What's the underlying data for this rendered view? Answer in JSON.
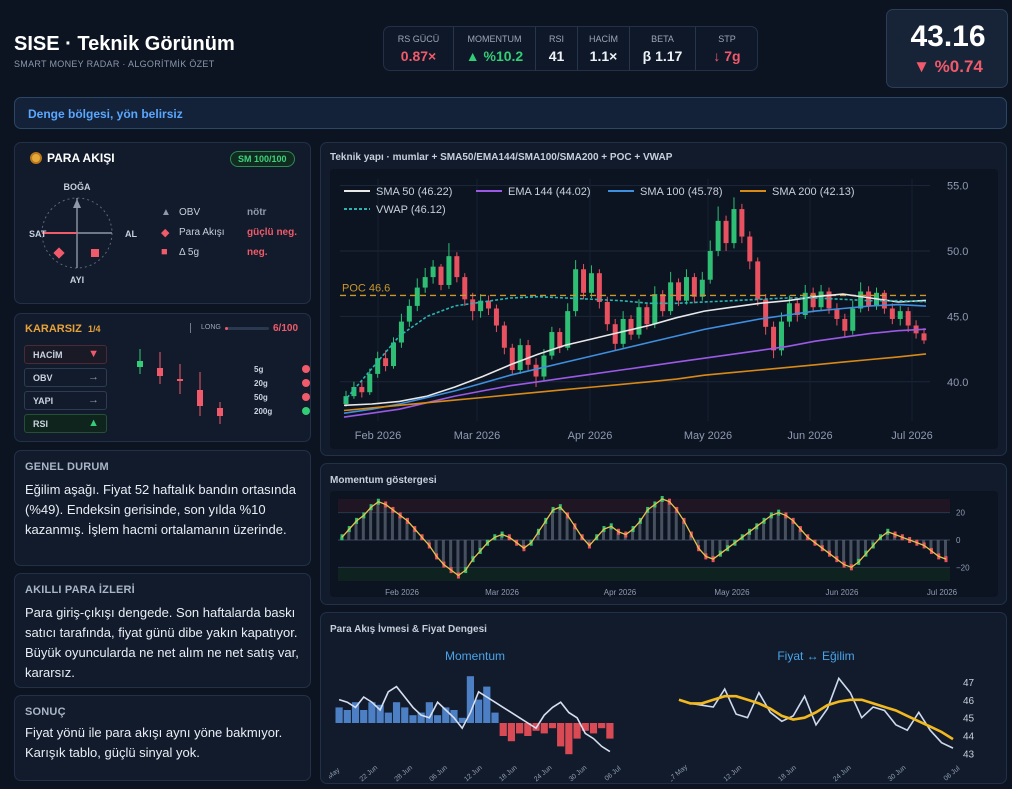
{
  "header": {
    "title": "SISE · Teknik Görünüm",
    "subtitle": "SMART MONEY RADAR · ALGORİTMİK ÖZET"
  },
  "metrics": [
    {
      "label": "RS GÜCÜ",
      "value": "0.87×",
      "tone": "red"
    },
    {
      "label": "MOMENTUM",
      "value": "▲ %10.2",
      "tone": "green"
    },
    {
      "label": "RSI",
      "value": "41",
      "tone": "white"
    },
    {
      "label": "HACİM",
      "value": "1.1×",
      "tone": "white"
    },
    {
      "label": "BETA",
      "value": "β 1.17",
      "tone": "white"
    },
    {
      "label": "STP",
      "value": "↓ 7g",
      "tone": "red"
    }
  ],
  "price": {
    "value": "43.16",
    "change": "▼ %0.74"
  },
  "banner": "Denge bölgesi, yön belirsiz",
  "para_akisi": {
    "title": "PARA AKIŞI",
    "badge": "SM 100/100",
    "compass": {
      "top": "BOĞA",
      "bottom": "AYI",
      "left": "SAT",
      "right": "AL"
    },
    "legend": [
      {
        "icon": "▲",
        "label": "OBV",
        "value": "nötr",
        "tone": "#8e98a8"
      },
      {
        "icon": "◆",
        "label": "Para Akışı",
        "value": "güçlü neg.",
        "tone": "#f05a6a"
      },
      {
        "icon": "■",
        "label": "Δ 5g",
        "value": "neg.",
        "tone": "#f05a6a"
      }
    ]
  },
  "kararsiz": {
    "title": "KARARSIZ",
    "ratio": "1/4",
    "long_label": "LONG",
    "score": "6/100",
    "chips": [
      {
        "label": "HACİM",
        "arrow": "▼",
        "tone": "red"
      },
      {
        "label": "OBV",
        "arrow": "→",
        "tone": "neutral"
      },
      {
        "label": "YAPI",
        "arrow": "→",
        "tone": "neutral"
      },
      {
        "label": "RSI",
        "arrow": "▲",
        "tone": "green"
      }
    ],
    "timeframes": [
      {
        "label": "5g",
        "color": "#f05a6a"
      },
      {
        "label": "20g",
        "color": "#f05a6a"
      },
      {
        "label": "50g",
        "color": "#f05a6a"
      },
      {
        "label": "200g",
        "color": "#33cc77"
      }
    ]
  },
  "cards": [
    {
      "title": "GENEL DURUM",
      "text": "Eğilim aşağı. Fiyat 52 haftalık bandın ortasında (%49). Endeksin gerisinde, son yılda %10 kazanmış. İşlem hacmi ortalamanın üzerinde."
    },
    {
      "title": "AKILLI PARA İZLERİ",
      "text": "Para giriş-çıkışı dengede. Son haftalarda baskı satıcı tarafında, fiyat günü dibe yakın kapatıyor. Büyük oyuncularda ne net alım ne net satış var, kararsız."
    },
    {
      "title": "SONUÇ",
      "text": "Fiyat yönü ile para akışı aynı yöne bakmıyor. Karışık tablo, güçlü sinyal yok."
    }
  ],
  "chart_data": [
    {
      "type": "line",
      "title": "Teknik yapı · mumlar + SMA50/EMA144/SMA100/SMA200 + POC + VWAP",
      "x_ticks": [
        "Feb 2026",
        "Mar 2026",
        "Apr 2026",
        "May 2026",
        "Jun 2026",
        "Jul 2026"
      ],
      "y_ticks": [
        40.0,
        45.0,
        50.0,
        55.0
      ],
      "ylim": [
        37.0,
        55.5
      ],
      "poc": {
        "label": "POC 46.6",
        "value": 46.6,
        "color": "#c9972c"
      },
      "series": [
        {
          "name": "SMA 50 (46.22)",
          "color": "#e8e8e8",
          "dashed": false,
          "values": [
            38.2,
            38.3,
            38.5,
            38.9,
            39.6,
            40.4,
            41.3,
            42.1,
            42.8,
            43.3,
            43.8,
            44.3,
            44.9,
            45.4,
            45.7,
            46.0,
            46.2,
            46.5,
            46.7,
            46.4,
            46.1,
            46.22
          ]
        },
        {
          "name": "EMA 144 (44.02)",
          "color": "#9b59e6",
          "dashed": false,
          "values": [
            37.3,
            37.6,
            37.9,
            38.4,
            38.9,
            39.3,
            39.7,
            40.0,
            40.3,
            40.6,
            40.9,
            41.2,
            41.5,
            41.8,
            42.1,
            42.4,
            42.7,
            43.1,
            43.4,
            43.7,
            43.9,
            44.02
          ]
        },
        {
          "name": "SMA 100 (45.78)",
          "color": "#3f8fe0",
          "dashed": false,
          "values": [
            37.6,
            37.9,
            38.3,
            38.8,
            39.3,
            39.9,
            40.5,
            41.0,
            41.5,
            42.0,
            42.5,
            43.0,
            43.5,
            44.0,
            44.4,
            44.8,
            45.1,
            45.4,
            45.6,
            45.8,
            45.9,
            45.78
          ]
        },
        {
          "name": "SMA 200 (42.13)",
          "color": "#d98a16",
          "dashed": false,
          "values": [
            37.8,
            38.0,
            38.2,
            38.4,
            38.6,
            38.8,
            39.0,
            39.2,
            39.4,
            39.6,
            39.8,
            40.0,
            40.2,
            40.5,
            40.7,
            40.9,
            41.1,
            41.3,
            41.5,
            41.7,
            41.9,
            42.13
          ]
        },
        {
          "name": "VWAP (46.12)",
          "color": "#2bb5b0",
          "dashed": true,
          "values": [
            38.5,
            41.0,
            43.5,
            45.0,
            45.8,
            46.1,
            46.4,
            46.5,
            46.4,
            46.3,
            46.2,
            46.0,
            46.0,
            46.1,
            46.2,
            46.3,
            46.4,
            46.4,
            46.3,
            46.2,
            46.2,
            46.12
          ]
        }
      ],
      "candles": [
        {
          "o": 38.3,
          "c": 38.9,
          "h": 39.3,
          "l": 38.1
        },
        {
          "o": 38.9,
          "c": 39.6,
          "h": 40.0,
          "l": 38.7
        },
        {
          "o": 39.6,
          "c": 39.2,
          "h": 40.1,
          "l": 38.8
        },
        {
          "o": 39.2,
          "c": 40.6,
          "h": 41.0,
          "l": 39.0
        },
        {
          "o": 40.6,
          "c": 41.8,
          "h": 42.3,
          "l": 40.3
        },
        {
          "o": 41.8,
          "c": 41.2,
          "h": 42.4,
          "l": 40.8
        },
        {
          "o": 41.2,
          "c": 43.0,
          "h": 43.4,
          "l": 41.0
        },
        {
          "o": 43.0,
          "c": 44.6,
          "h": 45.2,
          "l": 42.6
        },
        {
          "o": 44.6,
          "c": 45.8,
          "h": 46.3,
          "l": 44.2
        },
        {
          "o": 45.8,
          "c": 47.2,
          "h": 47.9,
          "l": 45.4
        },
        {
          "o": 47.2,
          "c": 48.0,
          "h": 48.7,
          "l": 46.8
        },
        {
          "o": 48.0,
          "c": 48.8,
          "h": 49.3,
          "l": 47.5
        },
        {
          "o": 48.8,
          "c": 47.4,
          "h": 49.0,
          "l": 47.0
        },
        {
          "o": 47.4,
          "c": 49.6,
          "h": 50.6,
          "l": 47.1
        },
        {
          "o": 49.6,
          "c": 48.0,
          "h": 49.9,
          "l": 47.6
        },
        {
          "o": 48.0,
          "c": 46.3,
          "h": 48.3,
          "l": 45.8
        },
        {
          "o": 46.3,
          "c": 45.4,
          "h": 46.8,
          "l": 44.7
        },
        {
          "o": 45.4,
          "c": 46.2,
          "h": 46.7,
          "l": 44.9
        },
        {
          "o": 46.2,
          "c": 45.6,
          "h": 46.6,
          "l": 45.1
        },
        {
          "o": 45.6,
          "c": 44.3,
          "h": 45.9,
          "l": 43.8
        },
        {
          "o": 44.3,
          "c": 42.6,
          "h": 44.6,
          "l": 42.1
        },
        {
          "o": 42.6,
          "c": 40.9,
          "h": 42.9,
          "l": 40.5
        },
        {
          "o": 40.9,
          "c": 42.8,
          "h": 43.3,
          "l": 40.6
        },
        {
          "o": 42.8,
          "c": 41.3,
          "h": 43.2,
          "l": 40.9
        },
        {
          "o": 41.3,
          "c": 40.4,
          "h": 41.8,
          "l": 39.6
        },
        {
          "o": 40.4,
          "c": 42.0,
          "h": 42.5,
          "l": 40.1
        },
        {
          "o": 42.0,
          "c": 43.8,
          "h": 44.2,
          "l": 41.7
        },
        {
          "o": 43.8,
          "c": 42.6,
          "h": 44.1,
          "l": 42.2
        },
        {
          "o": 42.6,
          "c": 45.4,
          "h": 46.0,
          "l": 42.4
        },
        {
          "o": 45.4,
          "c": 48.6,
          "h": 49.3,
          "l": 45.0
        },
        {
          "o": 48.6,
          "c": 46.8,
          "h": 49.0,
          "l": 46.3
        },
        {
          "o": 46.8,
          "c": 48.3,
          "h": 48.9,
          "l": 46.4
        },
        {
          "o": 48.3,
          "c": 46.1,
          "h": 48.6,
          "l": 45.6
        },
        {
          "o": 46.1,
          "c": 44.4,
          "h": 46.5,
          "l": 43.9
        },
        {
          "o": 44.4,
          "c": 42.9,
          "h": 44.8,
          "l": 42.4
        },
        {
          "o": 42.9,
          "c": 44.8,
          "h": 45.4,
          "l": 42.6
        },
        {
          "o": 44.8,
          "c": 43.6,
          "h": 45.1,
          "l": 43.2
        },
        {
          "o": 43.6,
          "c": 45.7,
          "h": 46.3,
          "l": 43.3
        },
        {
          "o": 45.7,
          "c": 44.4,
          "h": 46.0,
          "l": 44.0
        },
        {
          "o": 44.4,
          "c": 46.7,
          "h": 47.3,
          "l": 44.1
        },
        {
          "o": 46.7,
          "c": 45.4,
          "h": 47.0,
          "l": 45.0
        },
        {
          "o": 45.4,
          "c": 47.6,
          "h": 48.4,
          "l": 45.1
        },
        {
          "o": 47.6,
          "c": 46.2,
          "h": 47.9,
          "l": 45.8
        },
        {
          "o": 46.2,
          "c": 48.0,
          "h": 48.6,
          "l": 45.9
        },
        {
          "o": 48.0,
          "c": 46.5,
          "h": 48.3,
          "l": 46.0
        },
        {
          "o": 46.5,
          "c": 47.8,
          "h": 48.4,
          "l": 46.2
        },
        {
          "o": 47.8,
          "c": 50.0,
          "h": 50.8,
          "l": 47.5
        },
        {
          "o": 50.0,
          "c": 52.3,
          "h": 53.4,
          "l": 49.6
        },
        {
          "o": 52.3,
          "c": 50.6,
          "h": 52.7,
          "l": 50.0
        },
        {
          "o": 50.6,
          "c": 53.2,
          "h": 54.1,
          "l": 50.2
        },
        {
          "o": 53.2,
          "c": 51.1,
          "h": 53.6,
          "l": 50.6
        },
        {
          "o": 51.1,
          "c": 49.2,
          "h": 51.5,
          "l": 48.6
        },
        {
          "o": 49.2,
          "c": 46.3,
          "h": 49.5,
          "l": 45.8
        },
        {
          "o": 46.3,
          "c": 44.2,
          "h": 46.7,
          "l": 43.6
        },
        {
          "o": 44.2,
          "c": 42.4,
          "h": 44.6,
          "l": 41.8
        },
        {
          "o": 42.4,
          "c": 44.6,
          "h": 45.3,
          "l": 42.0
        },
        {
          "o": 44.6,
          "c": 46.0,
          "h": 46.6,
          "l": 44.2
        },
        {
          "o": 46.0,
          "c": 45.1,
          "h": 46.4,
          "l": 44.6
        },
        {
          "o": 45.1,
          "c": 46.8,
          "h": 47.4,
          "l": 44.8
        },
        {
          "o": 46.8,
          "c": 45.7,
          "h": 47.2,
          "l": 45.3
        },
        {
          "o": 45.7,
          "c": 46.9,
          "h": 47.4,
          "l": 45.4
        },
        {
          "o": 46.9,
          "c": 45.6,
          "h": 47.2,
          "l": 45.2
        },
        {
          "o": 45.6,
          "c": 44.8,
          "h": 46.0,
          "l": 44.3
        },
        {
          "o": 44.8,
          "c": 43.9,
          "h": 45.2,
          "l": 43.4
        },
        {
          "o": 43.9,
          "c": 45.6,
          "h": 46.2,
          "l": 43.6
        },
        {
          "o": 45.6,
          "c": 46.9,
          "h": 47.6,
          "l": 45.3
        },
        {
          "o": 46.9,
          "c": 45.8,
          "h": 47.3,
          "l": 45.4
        },
        {
          "o": 45.8,
          "c": 46.8,
          "h": 47.2,
          "l": 45.5
        },
        {
          "o": 46.8,
          "c": 45.6,
          "h": 47.0,
          "l": 45.2
        },
        {
          "o": 45.6,
          "c": 44.8,
          "h": 46.0,
          "l": 44.4
        },
        {
          "o": 44.8,
          "c": 45.4,
          "h": 45.8,
          "l": 44.3
        },
        {
          "o": 45.4,
          "c": 44.3,
          "h": 45.7,
          "l": 43.8
        },
        {
          "o": 44.3,
          "c": 43.7,
          "h": 44.7,
          "l": 43.3
        },
        {
          "o": 43.7,
          "c": 43.16,
          "h": 44.1,
          "l": 42.9
        }
      ]
    },
    {
      "type": "line",
      "title": "Momentum göstergesi",
      "x_ticks": [
        "Feb 2026",
        "Mar 2026",
        "Apr 2026",
        "May 2026",
        "Jun 2026",
        "Jul 2026"
      ],
      "y_ticks": [
        20,
        0,
        -20
      ],
      "ylim": [
        -30,
        30
      ],
      "values": [
        2,
        8,
        14,
        18,
        24,
        28,
        26,
        22,
        18,
        14,
        8,
        2,
        -4,
        -12,
        -18,
        -22,
        -26,
        -22,
        -14,
        -8,
        -2,
        2,
        4,
        2,
        -2,
        -6,
        -2,
        6,
        14,
        22,
        24,
        18,
        10,
        2,
        -4,
        2,
        8,
        10,
        6,
        4,
        8,
        14,
        22,
        26,
        30,
        28,
        22,
        14,
        4,
        -6,
        -12,
        -14,
        -10,
        -6,
        -2,
        2,
        6,
        10,
        14,
        18,
        20,
        18,
        14,
        8,
        2,
        -2,
        -6,
        -10,
        -14,
        -18,
        -20,
        -16,
        -10,
        -4,
        2,
        6,
        4,
        2,
        0,
        -2,
        -4,
        -8,
        -12,
        -14
      ]
    },
    {
      "type": "bar",
      "title": "Momentum",
      "x_ticks": [
        "May",
        "22 Jun",
        "28 Jun",
        "06 Jun",
        "12 Jun",
        "18 Jun",
        "24 Jun",
        "30 Jun",
        "06 Jul"
      ],
      "values": [
        6,
        5,
        8,
        5,
        8,
        7,
        4,
        8,
        6,
        3,
        4,
        8,
        3,
        6,
        5,
        2,
        18,
        9,
        14,
        4,
        -5,
        -7,
        -4,
        -5,
        -3,
        -4,
        -2,
        -9,
        -12,
        -6,
        -3,
        -4,
        -2,
        -6
      ],
      "line_values": [
        9,
        8,
        6,
        10,
        8,
        5,
        12,
        14,
        10,
        6,
        3,
        2,
        8,
        5,
        2,
        -2,
        4,
        12,
        10,
        8,
        6,
        4,
        2,
        0,
        -2,
        3,
        6,
        8,
        4,
        2,
        -4,
        -6,
        -9,
        -11
      ]
    },
    {
      "type": "line",
      "title": "Fiyat ↔ Eğilim",
      "x_ticks": [
        "27 May",
        "12 Jun",
        "18 Jun",
        "24 Jun",
        "30 Jun",
        "06 Jul"
      ],
      "y_ticks": [
        47,
        46,
        45,
        44,
        43
      ],
      "ylim": [
        42.8,
        47.5
      ],
      "series": [
        {
          "name": "",
          "color": "#cdd9ee",
          "values": [
            46.0,
            45.8,
            45.7,
            45.6,
            46.6,
            45.2,
            45.0,
            46.4,
            45.3,
            44.8,
            45.1,
            46.2,
            44.6,
            45.5,
            47.2,
            46.4,
            45.0,
            45.6,
            45.4,
            44.6,
            44.3,
            45.3,
            44.3,
            43.6,
            43.3
          ]
        },
        {
          "name": "",
          "color": "#f2b81f",
          "values": [
            46.0,
            45.8,
            45.8,
            46.0,
            46.2,
            46.2,
            46.0,
            45.8,
            45.5,
            45.1,
            44.9,
            45.0,
            45.3,
            45.7,
            45.9,
            46.0,
            46.0,
            45.8,
            45.6,
            45.4,
            45.1,
            44.8,
            44.5,
            44.2,
            43.8
          ]
        }
      ]
    }
  ]
}
